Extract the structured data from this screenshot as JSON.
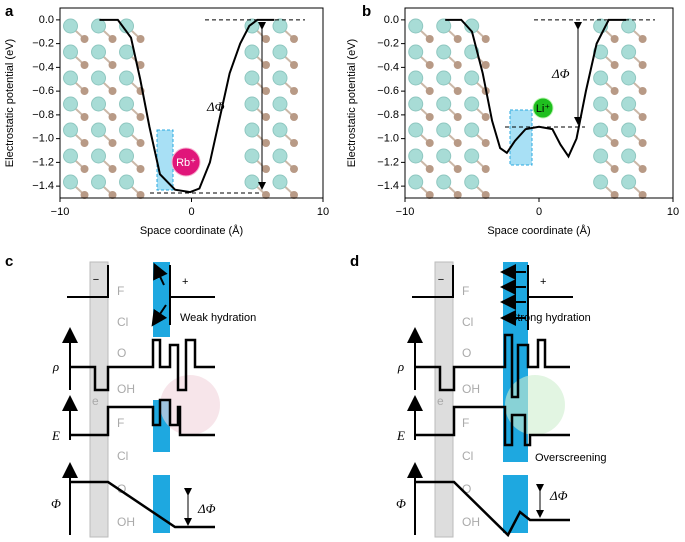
{
  "chart_data": [
    {
      "type": "line",
      "label": "a",
      "xlabel": "Space coordinate (Å)",
      "ylabel": "Electrostatic potential (eV)",
      "x": [
        -7,
        -5.6,
        -4.6,
        -3.9,
        -3.2,
        -2.4,
        -1.25,
        -0.1,
        0.6,
        1.4,
        2.2,
        2.9,
        3.7,
        4.4,
        5,
        6.3
      ],
      "values": [
        0,
        0,
        -0.15,
        -0.5,
        -0.9,
        -1.3,
        -1.43,
        -1.45,
        -1.42,
        -1.2,
        -0.8,
        -0.45,
        -0.2,
        -0.05,
        0,
        0
      ],
      "color": "#000000",
      "xlim": [
        -10,
        10
      ],
      "xticks": [
        {
          "value": -10,
          "label": "−10"
        },
        0,
        10
      ],
      "ylim": [
        -1.5,
        0.1
      ],
      "yticks": [
        {
          "value": 0,
          "label": "0.0"
        },
        {
          "value": -0.2,
          "label": "−0.2"
        },
        {
          "value": -0.4,
          "label": "−0.4"
        },
        {
          "value": -0.6,
          "label": "−0.6"
        },
        {
          "value": -0.8,
          "label": "−0.8"
        },
        {
          "value": -1.0,
          "label": "−1.0"
        },
        {
          "value": -1.2,
          "label": "−1.2"
        },
        {
          "value": -1.4,
          "label": "−1.4"
        }
      ],
      "annotations": [
        "ΔΦ",
        "Rb⁺"
      ]
    },
    {
      "type": "line",
      "label": "b",
      "xlabel": "Space coordinate (Å)",
      "ylabel": "Electrostatic potential (eV)",
      "x": [
        -7,
        -5.8,
        -5,
        -4.2,
        -3.5,
        -2.9,
        -2.4,
        -1.8,
        -1,
        0,
        1,
        1.6,
        2.2,
        2.8,
        3.5,
        4.3,
        5.2,
        6.5
      ],
      "values": [
        0,
        0,
        -0.1,
        -0.45,
        -0.85,
        -1.08,
        -1.12,
        -1.02,
        -0.92,
        -0.9,
        -0.92,
        -1.05,
        -1.15,
        -1.0,
        -0.6,
        -0.2,
        0,
        0
      ],
      "color": "#000000",
      "xlim": [
        -10,
        10
      ],
      "xticks": [
        {
          "value": -10,
          "label": "−10"
        },
        0,
        10
      ],
      "ylim": [
        -1.5,
        0.1
      ],
      "yticks": [
        {
          "value": 0,
          "label": "0.0"
        },
        {
          "value": -0.2,
          "label": "−0.2"
        },
        {
          "value": -0.4,
          "label": "−0.4"
        },
        {
          "value": -0.6,
          "label": "−0.6"
        },
        {
          "value": -0.8,
          "label": "−0.8"
        },
        {
          "value": -1.0,
          "label": "−1.0"
        },
        {
          "value": -1.2,
          "label": "−1.2"
        },
        {
          "value": -1.4,
          "label": "−1.4"
        }
      ],
      "annotations": [
        "ΔΦ",
        "Li⁺"
      ]
    }
  ],
  "diagrams": [
    {
      "label": "c",
      "minus": "−",
      "plus": "+",
      "hydration": "Weak hydration",
      "layers": [
        "F",
        "Cl",
        "O",
        "OH",
        "F",
        "Cl",
        "O",
        "OH"
      ],
      "axes": [
        "ρ",
        "E",
        "Φ"
      ],
      "delta": "ΔΦ",
      "electron": "e"
    },
    {
      "label": "d",
      "minus": "−",
      "plus": "+",
      "hydration": "Strong hydration",
      "layers": [
        "F",
        "Cl",
        "O",
        "OH",
        "F",
        "Cl",
        "O",
        "OH"
      ],
      "axes": [
        "ρ",
        "E",
        "Φ"
      ],
      "delta": "ΔΦ",
      "electron": "e",
      "note": "Overscreening"
    }
  ]
}
